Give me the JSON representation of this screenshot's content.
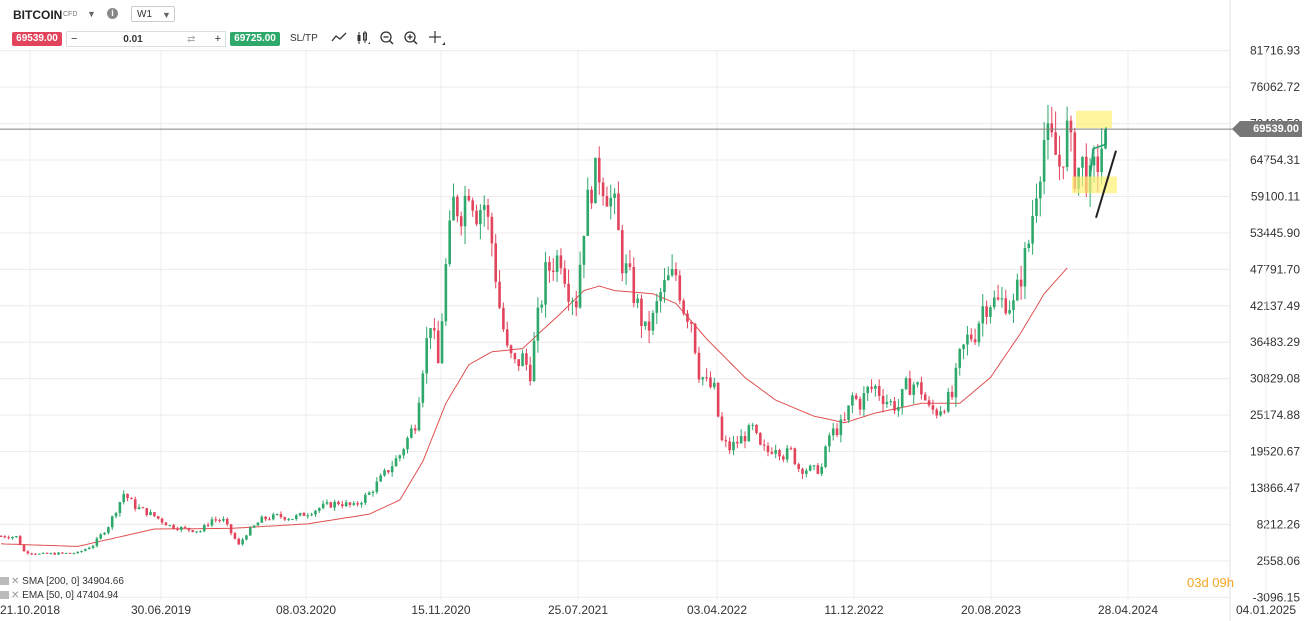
{
  "instrument": {
    "symbol": "BITCOIN",
    "type": "CFD",
    "timeframe": "W1",
    "sell_price": "69539.00",
    "buy_price": "69725.00",
    "volume": "0.01",
    "sltp_label": "SL/TP",
    "minus_label": "−",
    "plus_label": "+",
    "info_label": "i"
  },
  "toolbar_icons": [
    "line-chart-icon",
    "candlestick-icon",
    "zoom-out-icon",
    "zoom-in-icon",
    "crosshair-icon"
  ],
  "legend": [
    {
      "label": "SMA [200, 0] 34904.66"
    },
    {
      "label": "EMA [50, 0] 47404.94"
    }
  ],
  "timer": "03d 09h",
  "current_price_label": "69539.00",
  "colors": {
    "up": "#2ea86b",
    "down": "#e2445c",
    "ema": "#e05050",
    "price_line": "#808080",
    "highlight": "#fff176",
    "grid": "#ececec",
    "axis_text": "#333333"
  },
  "chart_data": {
    "type": "candlestick",
    "x_tick_labels": [
      "21.10.2018",
      "30.06.2019",
      "08.03.2020",
      "15.11.2020",
      "25.07.2021",
      "03.04.2022",
      "11.12.2022",
      "20.08.2023",
      "28.04.2024",
      "04.01.2025"
    ],
    "y_tick_labels": [
      "81716.93",
      "76062.72",
      "70408.52",
      "64754.31",
      "59100.11",
      "53445.90",
      "47791.70",
      "42137.49",
      "36483.29",
      "30829.08",
      "25174.88",
      "19520.67",
      "13866.47",
      "8212.26",
      "2558.06",
      "-3096.15"
    ],
    "y_ticks": [
      81716.93,
      76062.72,
      70408.52,
      64754.31,
      59100.11,
      53445.9,
      47791.7,
      42137.49,
      36483.29,
      30829.08,
      25174.88,
      19520.67,
      13866.47,
      8212.26,
      2558.06,
      -3096.15
    ],
    "ylim": [
      -4400,
      85000
    ],
    "current_price": 69539,
    "price_path": [
      [
        0,
        6400
      ],
      [
        4,
        6300
      ],
      [
        6,
        4000
      ],
      [
        10,
        3600
      ],
      [
        20,
        3800
      ],
      [
        24,
        5000
      ],
      [
        28,
        8000
      ],
      [
        32,
        13000
      ],
      [
        35,
        11000
      ],
      [
        40,
        9500
      ],
      [
        44,
        8000
      ],
      [
        48,
        7500
      ],
      [
        52,
        7200
      ],
      [
        55,
        9000
      ],
      [
        58,
        8800
      ],
      [
        62,
        5000
      ],
      [
        64,
        6800
      ],
      [
        68,
        9000
      ],
      [
        72,
        9500
      ],
      [
        76,
        9200
      ],
      [
        80,
        10000
      ],
      [
        84,
        11000
      ],
      [
        88,
        11600
      ],
      [
        92,
        11000
      ],
      [
        96,
        13000
      ],
      [
        100,
        16000
      ],
      [
        104,
        19000
      ],
      [
        108,
        24000
      ],
      [
        110,
        33000
      ],
      [
        112,
        40000
      ],
      [
        114,
        33000
      ],
      [
        116,
        48000
      ],
      [
        118,
        58000
      ],
      [
        120,
        57000
      ],
      [
        122,
        61000
      ],
      [
        124,
        57000
      ],
      [
        126,
        58000
      ],
      [
        128,
        52000
      ],
      [
        130,
        42000
      ],
      [
        132,
        35000
      ],
      [
        134,
        33000
      ],
      [
        136,
        34000
      ],
      [
        138,
        32000
      ],
      [
        140,
        40000
      ],
      [
        142,
        47000
      ],
      [
        144,
        49000
      ],
      [
        146,
        50000
      ],
      [
        148,
        45000
      ],
      [
        150,
        43000
      ],
      [
        152,
        55000
      ],
      [
        154,
        61000
      ],
      [
        156,
        63000
      ],
      [
        158,
        60000
      ],
      [
        160,
        57000
      ],
      [
        162,
        49000
      ],
      [
        164,
        46000
      ],
      [
        166,
        42000
      ],
      [
        168,
        38000
      ],
      [
        170,
        40000
      ],
      [
        172,
        44000
      ],
      [
        174,
        46000
      ],
      [
        176,
        47000
      ],
      [
        178,
        42000
      ],
      [
        180,
        40000
      ],
      [
        182,
        32000
      ],
      [
        184,
        30000
      ],
      [
        186,
        29000
      ],
      [
        188,
        21000
      ],
      [
        190,
        20000
      ],
      [
        192,
        21000
      ],
      [
        194,
        22000
      ],
      [
        196,
        23000
      ],
      [
        198,
        20000
      ],
      [
        200,
        19500
      ],
      [
        202,
        20500
      ],
      [
        204,
        19000
      ],
      [
        206,
        19500
      ],
      [
        208,
        17000
      ],
      [
        210,
        16800
      ],
      [
        212,
        16600
      ],
      [
        214,
        17000
      ],
      [
        216,
        22000
      ],
      [
        218,
        23000
      ],
      [
        220,
        24000
      ],
      [
        222,
        28000
      ],
      [
        224,
        27000
      ],
      [
        226,
        29000
      ],
      [
        228,
        29500
      ],
      [
        230,
        28000
      ],
      [
        232,
        27000
      ],
      [
        234,
        26500
      ],
      [
        236,
        29500
      ],
      [
        238,
        30000
      ],
      [
        240,
        29000
      ],
      [
        242,
        26000
      ],
      [
        244,
        25800
      ],
      [
        246,
        27000
      ],
      [
        248,
        28000
      ],
      [
        250,
        34000
      ],
      [
        252,
        37000
      ],
      [
        254,
        38000
      ],
      [
        256,
        42000
      ],
      [
        258,
        43000
      ],
      [
        260,
        42500
      ],
      [
        262,
        43000
      ],
      [
        264,
        42000
      ],
      [
        266,
        47000
      ],
      [
        268,
        52000
      ],
      [
        270,
        61000
      ],
      [
        272,
        68000
      ],
      [
        274,
        67000
      ],
      [
        276,
        64000
      ],
      [
        278,
        69000
      ],
      [
        280,
        63000
      ],
      [
        282,
        64000
      ],
      [
        284,
        61000
      ],
      [
        286,
        64500
      ],
      [
        288,
        69539
      ]
    ],
    "ema_path": [
      [
        0,
        5200
      ],
      [
        20,
        4800
      ],
      [
        40,
        7500
      ],
      [
        60,
        7600
      ],
      [
        80,
        8300
      ],
      [
        96,
        9800
      ],
      [
        104,
        12000
      ],
      [
        110,
        18000
      ],
      [
        116,
        27000
      ],
      [
        122,
        33000
      ],
      [
        128,
        35000
      ],
      [
        136,
        35500
      ],
      [
        146,
        41000
      ],
      [
        152,
        44500
      ],
      [
        156,
        45200
      ],
      [
        160,
        44500
      ],
      [
        170,
        44000
      ],
      [
        176,
        42500
      ],
      [
        184,
        37000
      ],
      [
        194,
        31000
      ],
      [
        202,
        27500
      ],
      [
        212,
        25000
      ],
      [
        220,
        24000
      ],
      [
        228,
        25500
      ],
      [
        240,
        27000
      ],
      [
        250,
        27000
      ],
      [
        258,
        31000
      ],
      [
        266,
        38000
      ],
      [
        272,
        44000
      ],
      [
        278,
        48000
      ]
    ],
    "annotations": [
      "resistance-zone-highlight",
      "support-zone-highlight",
      "bullish-flag-lines"
    ]
  }
}
